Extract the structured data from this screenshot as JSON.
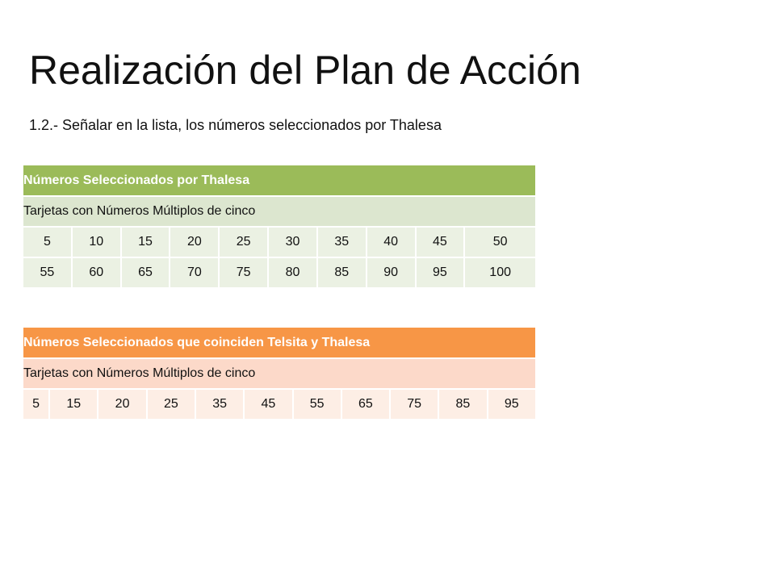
{
  "slide": {
    "title": "Realización del Plan de Acción",
    "subtitle": "1.2.- Señalar en la lista, los números seleccionados por Thalesa"
  },
  "table1": {
    "header": "Números Seleccionados por Thalesa",
    "subheader": "Tarjetas con Números Múltiplos de cinco",
    "rows": [
      [
        "5",
        "10",
        "15",
        "20",
        "25",
        "30",
        "35",
        "40",
        "45",
        "50"
      ],
      [
        "55",
        "60",
        "65",
        "70",
        "75",
        "80",
        "85",
        "90",
        "95",
        "100"
      ]
    ],
    "colors": {
      "header": "#9bbb59",
      "subheader": "#dce6cf",
      "cells": "#ebf1e3"
    }
  },
  "table2": {
    "header": "Números Seleccionados que coinciden Telsita y Thalesa",
    "subheader": "Tarjetas con Números Múltiplos de cinco",
    "rows": [
      [
        "5",
        "15",
        "20",
        "25",
        "35",
        "45",
        "55",
        "65",
        "75",
        "85",
        "95"
      ]
    ],
    "colors": {
      "header": "#f79646",
      "subheader": "#fcd9c9",
      "cells": "#fdeee5"
    }
  }
}
